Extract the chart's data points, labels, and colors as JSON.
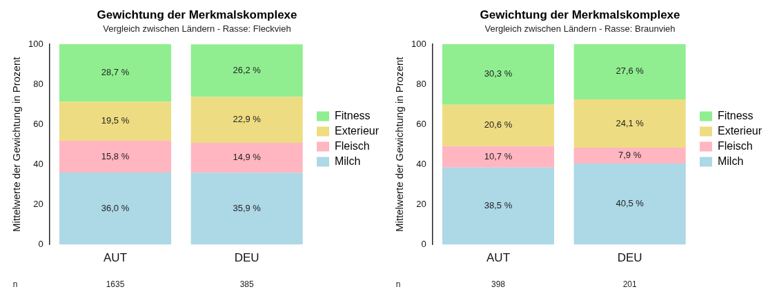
{
  "chart_data": [
    {
      "type": "bar",
      "title": "Gewichtung der Merkmalskomplexe",
      "subtitle": "Vergleich zwischen Ländern - Rasse: Fleckvieh",
      "ylabel": "Mittelwerte der Gewichtung in Prozent",
      "categories": [
        "AUT",
        "DEU"
      ],
      "stacked": true,
      "ylim": [
        0,
        100
      ],
      "yticks": [
        0,
        20,
        40,
        60,
        80,
        100
      ],
      "grid": false,
      "legend": "right",
      "series": [
        {
          "name": "Milch",
          "color": "#add8e6",
          "values": [
            36.0,
            35.9
          ],
          "value_labels": [
            "36,0 %",
            "35,9 %"
          ]
        },
        {
          "name": "Fleisch",
          "color": "#ffb6c1",
          "values": [
            15.8,
            14.9
          ],
          "value_labels": [
            "15,8 %",
            "14,9 %"
          ]
        },
        {
          "name": "Exterieur",
          "color": "#eedc82",
          "values": [
            19.5,
            22.9
          ],
          "value_labels": [
            "19,5 %",
            "22,9 %"
          ]
        },
        {
          "name": "Fitness",
          "color": "#90ee90",
          "values": [
            28.7,
            26.2
          ],
          "value_labels": [
            "28,7 %",
            "26,2 %"
          ]
        }
      ],
      "annotations": [
        "n",
        "1635",
        "385"
      ]
    },
    {
      "type": "bar",
      "title": "Gewichtung der Merkmalskomplexe",
      "subtitle": "Vergleich zwischen Ländern - Rasse: Braunvieh",
      "ylabel": "Mittelwerte der Gewichtung in Prozent",
      "categories": [
        "AUT",
        "DEU"
      ],
      "stacked": true,
      "ylim": [
        0,
        100
      ],
      "yticks": [
        0,
        20,
        40,
        60,
        80,
        100
      ],
      "grid": false,
      "legend": "right",
      "series": [
        {
          "name": "Milch",
          "color": "#add8e6",
          "values": [
            38.5,
            40.5
          ],
          "value_labels": [
            "38,5 %",
            "40,5 %"
          ]
        },
        {
          "name": "Fleisch",
          "color": "#ffb6c1",
          "values": [
            10.7,
            7.9
          ],
          "value_labels": [
            "10,7 %",
            "7,9 %"
          ]
        },
        {
          "name": "Exterieur",
          "color": "#eedc82",
          "values": [
            20.6,
            24.1
          ],
          "value_labels": [
            "20,6 %",
            "24,1 %"
          ]
        },
        {
          "name": "Fitness",
          "color": "#90ee90",
          "values": [
            30.3,
            27.6
          ],
          "value_labels": [
            "30,3 %",
            "27,6 %"
          ]
        }
      ],
      "annotations": [
        "n",
        "398",
        "201"
      ]
    }
  ]
}
